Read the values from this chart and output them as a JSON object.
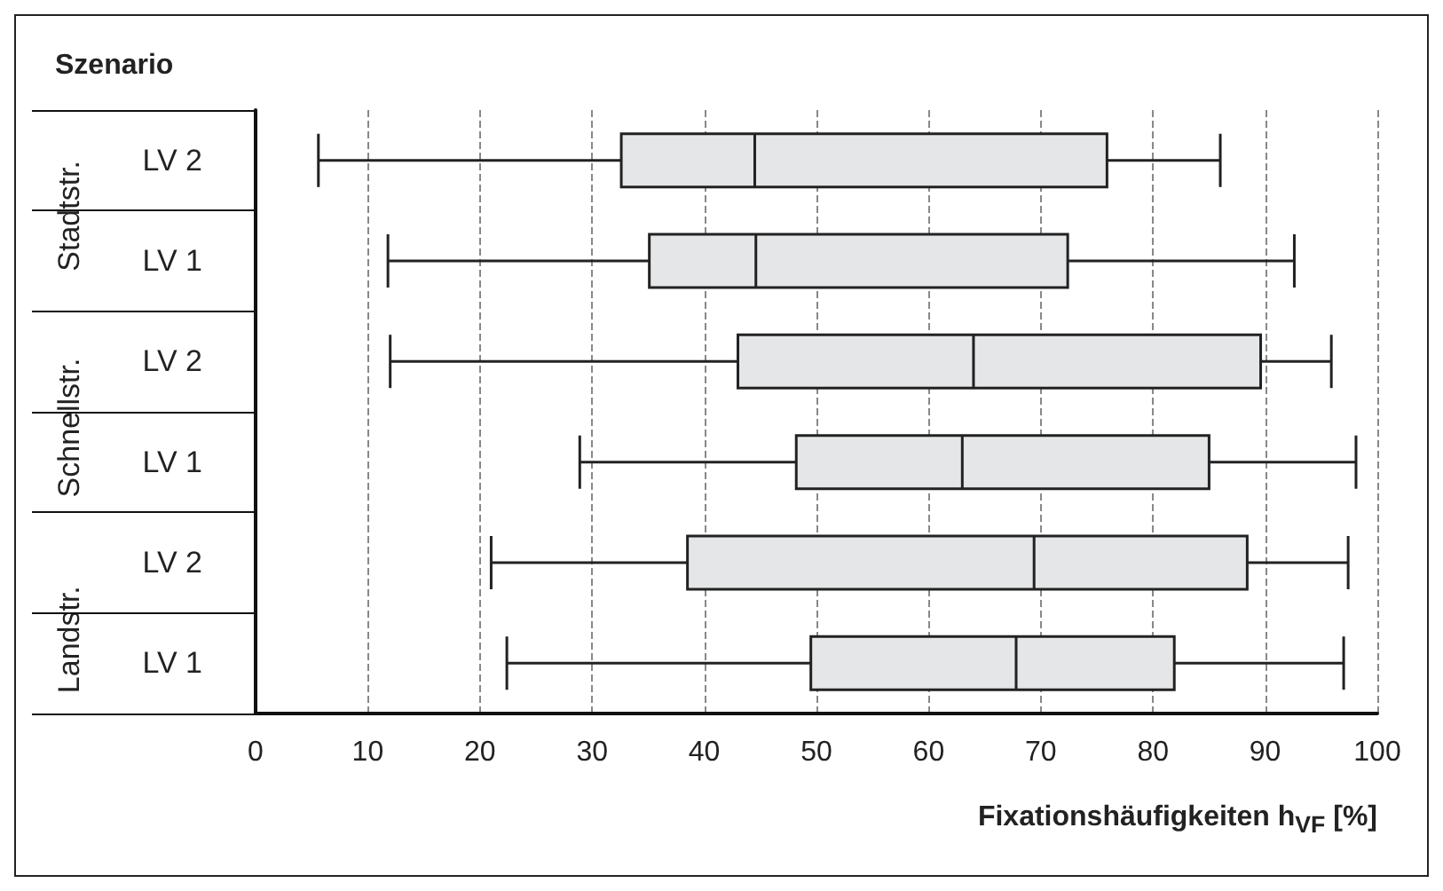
{
  "chart_data": {
    "type": "box",
    "orientation": "horizontal",
    "ylabel": "Szenario",
    "xlabel": "Fixationshäufigkeiten h$_{VF}$ [%]",
    "categories": [
      "LV 2",
      "LV 1",
      "LV 2",
      "LV 1",
      "LV 2",
      "LV 1"
    ],
    "annotations": [
      "Stadtstr.",
      "Schnellstr.",
      "Landstr."
    ],
    "color": "#e5e6e7",
    "boxes": [
      {
        "low": 5.6,
        "q1": 32.6,
        "median": 44.5,
        "q3": 75.9,
        "high": 86
      },
      {
        "low": 11.8,
        "q1": 35.1,
        "median": 44.6,
        "q3": 72.4,
        "high": 92.6
      },
      {
        "low": 12,
        "q1": 43,
        "median": 64,
        "q3": 89.6,
        "high": 95.9
      },
      {
        "low": 28.9,
        "q1": 48.2,
        "median": 63,
        "q3": 85,
        "high": 98.1
      },
      {
        "low": 21,
        "q1": 38.5,
        "median": 69.4,
        "q3": 88.4,
        "high": 97.4
      },
      {
        "low": 22.4,
        "q1": 49.5,
        "median": 67.8,
        "q3": 81.9,
        "high": 97
      }
    ],
    "xlim": [
      0,
      100
    ],
    "xticks": [
      0,
      10,
      20,
      30,
      40,
      50,
      60,
      70,
      80,
      90,
      100
    ],
    "grid": "x"
  }
}
